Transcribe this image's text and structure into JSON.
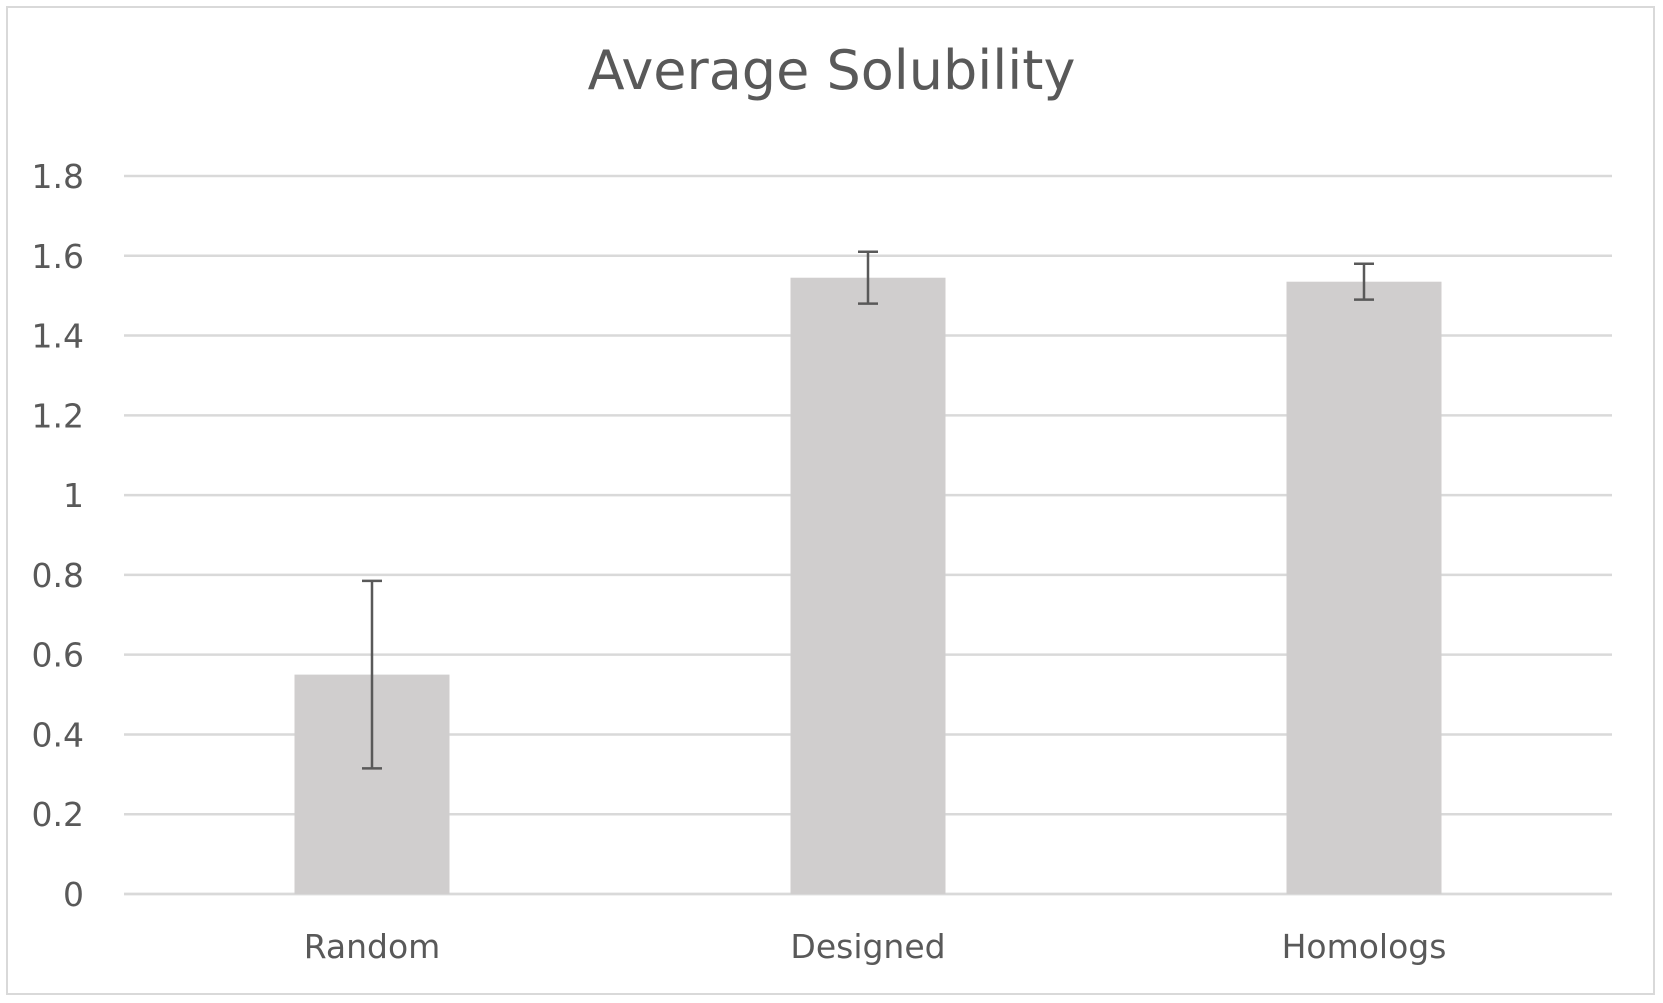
{
  "chart_data": {
    "type": "bar",
    "title": "Average Solubility",
    "xlabel": "",
    "ylabel": "",
    "categories": [
      "Random",
      "Designed",
      "Homologs"
    ],
    "values": [
      0.55,
      1.545,
      1.535
    ],
    "error_bars": [
      {
        "low": 0.315,
        "high": 0.785
      },
      {
        "low": 1.48,
        "high": 1.61
      },
      {
        "low": 1.49,
        "high": 1.58
      }
    ],
    "ylim": [
      0,
      1.8
    ],
    "yticks": [
      "0",
      "0.2",
      "0.4",
      "0.6",
      "0.8",
      "1",
      "1.2",
      "1.4",
      "1.6",
      "1.8"
    ],
    "grid": true,
    "legend": "none",
    "colors": {
      "bar": "#d0cece",
      "error_bar": "#595959",
      "grid": "#d9d9d9",
      "text": "#595959"
    }
  }
}
